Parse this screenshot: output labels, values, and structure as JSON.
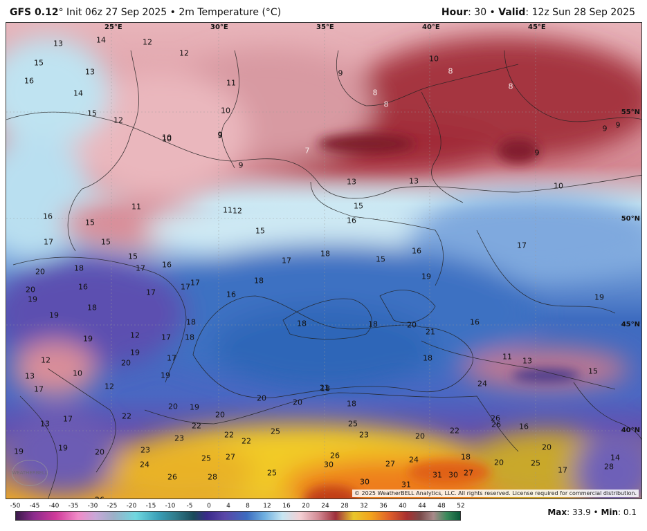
{
  "header": {
    "model": "GFS 0.12",
    "init_text": "° Init 06z 27 Sep 2025 • 2m Temperature (°C)",
    "hour_label": "Hour",
    "hour_value": ": 30 • ",
    "valid_label": "Valid",
    "valid_value": ": 12z Sun 28 Sep 2025"
  },
  "map": {
    "lon_labels": [
      "25°E",
      "30°E",
      "35°E",
      "40°E",
      "45°E"
    ],
    "lat_labels": [
      "55°N",
      "50°N",
      "45°N",
      "40°N"
    ],
    "logo": "WEATHERBELL",
    "copyright": "© 2025 WeatherBELL Analytics, LLC. All rights reserved. License required for commercial distribution.",
    "temperature_labels": [
      "13",
      "14",
      "12",
      "12",
      "15",
      "13",
      "16",
      "14",
      "15",
      "12",
      "11",
      "10",
      "9",
      "9",
      "8",
      "8",
      "10",
      "8",
      "8",
      "10",
      "10",
      "9",
      "9",
      "7",
      "9",
      "10",
      "9",
      "9",
      "13",
      "13",
      "15",
      "16",
      "16",
      "15",
      "11",
      "11",
      "12",
      "15",
      "17",
      "15",
      "15",
      "17",
      "18",
      "17",
      "18",
      "16",
      "20",
      "17",
      "15",
      "16",
      "17",
      "18",
      "20",
      "16",
      "17",
      "18",
      "19",
      "19",
      "18",
      "16",
      "18",
      "18",
      "19",
      "20",
      "21",
      "16",
      "17",
      "19",
      "12",
      "18",
      "17",
      "19",
      "19",
      "12",
      "10",
      "12",
      "13",
      "17",
      "20",
      "11",
      "13",
      "15",
      "24",
      "19",
      "17",
      "18",
      "20",
      "21",
      "20",
      "20",
      "19",
      "20",
      "23",
      "25",
      "23",
      "18",
      "18",
      "13",
      "17",
      "22",
      "22",
      "22",
      "25",
      "22",
      "20",
      "22",
      "26",
      "16",
      "19",
      "20",
      "23",
      "24",
      "25",
      "27",
      "26",
      "27",
      "24",
      "18",
      "20",
      "19",
      "26",
      "25",
      "17",
      "14",
      "28",
      "26",
      "28",
      "25",
      "30",
      "30",
      "31",
      "31",
      "30",
      "27",
      "20",
      "26"
    ]
  },
  "legend": {
    "ticks": [
      "-50",
      "-45",
      "-40",
      "-35",
      "-30",
      "-25",
      "-20",
      "-15",
      "-10",
      "-5",
      "0",
      "4",
      "8",
      "12",
      "16",
      "20",
      "24",
      "28",
      "32",
      "36",
      "40",
      "44",
      "48",
      "52"
    ]
  },
  "stats": {
    "max_label": "Max",
    "max_value": ": 33.9 • ",
    "min_label": "Min",
    "min_value": ": 0.1"
  },
  "colors": {
    "cold_red": "#9e2f3b",
    "pale_pink": "#e8c4c8",
    "light_blue": "#a9d8ea",
    "mid_blue": "#4c78c4",
    "purple": "#5a47a8",
    "yellow": "#f2cb25",
    "orange": "#ee7d1a"
  }
}
